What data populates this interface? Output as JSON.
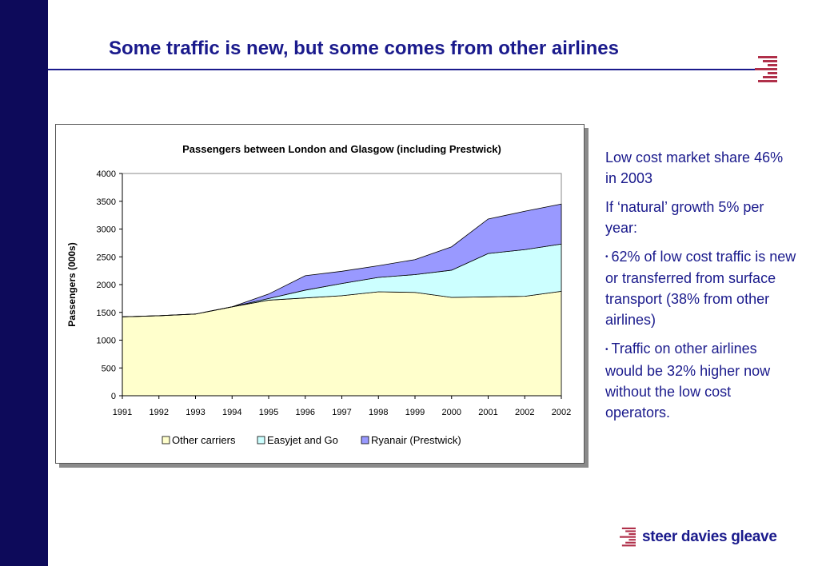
{
  "slide": {
    "title": "Some traffic is new, but some comes from other airlines",
    "brand_name": "steer davies gleave",
    "accent_color": "#1a1a8c",
    "logo_color": "#b0304a",
    "sidebar_color": "#0d0a5a"
  },
  "side_text": {
    "p1": "Low cost market share 46% in 2003",
    "p2": "If ‘natural’ growth 5% per year:",
    "bullet1": "62% of low cost traffic is new or transferred from surface transport (38% from other airlines)",
    "bullet2": "Traffic on other airlines would be 32% higher now without the low cost operators."
  },
  "chart_data": {
    "type": "area",
    "stacked": true,
    "title": "Passengers between London and Glasgow (including Prestwick)",
    "ylabel": "Passengers (000s)",
    "xlabel": "",
    "categories": [
      "1991",
      "1992",
      "1993",
      "1994",
      "1995",
      "1996",
      "1997",
      "1998",
      "1999",
      "2000",
      "2001",
      "2002",
      "2002"
    ],
    "ylim": [
      0,
      4000
    ],
    "yticks": [
      0,
      500,
      1000,
      1500,
      2000,
      2500,
      3000,
      3500,
      4000
    ],
    "legend_position": "bottom",
    "series": [
      {
        "name": "Other carriers",
        "color": "#ffffcc",
        "values": [
          1420,
          1440,
          1470,
          1600,
          1720,
          1760,
          1800,
          1870,
          1860,
          1770,
          1780,
          1790,
          1880
        ]
      },
      {
        "name": "Easyjet and Go",
        "color": "#ccffff",
        "values": [
          0,
          0,
          0,
          0,
          30,
          140,
          220,
          260,
          320,
          490,
          780,
          840,
          850
        ]
      },
      {
        "name": "Ryanair (Prestwick)",
        "color": "#9999ff",
        "values": [
          0,
          0,
          0,
          0,
          80,
          260,
          220,
          210,
          270,
          420,
          620,
          690,
          720
        ]
      }
    ]
  }
}
